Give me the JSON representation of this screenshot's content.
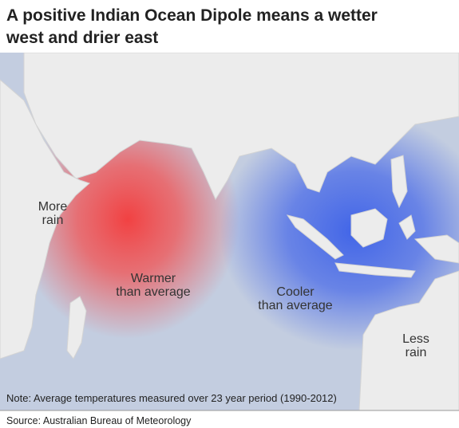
{
  "title": [
    "A positive Indian Ocean Dipole means a wetter",
    "west and drier east"
  ],
  "map_labels": [
    {
      "lines": [
        "More",
        "rain"
      ]
    },
    {
      "lines": [
        "Warmer",
        "than average"
      ]
    },
    {
      "lines": [
        "Cooler",
        "than average"
      ]
    },
    {
      "lines": [
        "Less",
        "rain"
      ]
    }
  ],
  "note": "Note: Average temperatures measured over 23 year period (1990-2012)",
  "source": "Source: Australian Bureau of Meteorology"
}
